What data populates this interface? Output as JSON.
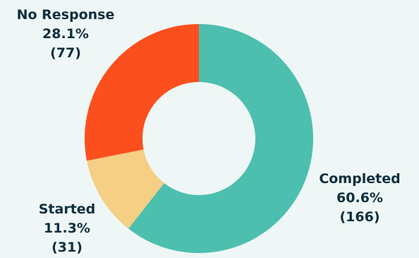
{
  "chart_data": {
    "type": "pie",
    "variant": "donut",
    "start": "top",
    "direction": "clockwise",
    "slices": [
      {
        "label": "Completed",
        "percent_label": "60.6%",
        "count_label": "(166)",
        "value": 166,
        "color": "#4dbfaf"
      },
      {
        "label": "Started",
        "percent_label": "11.3%",
        "count_label": "(31)",
        "value": 31,
        "color": "#f4cf84"
      },
      {
        "label": "No Response",
        "percent_label": "28.1%",
        "count_label": "(77)",
        "value": 77,
        "color": "#fc4f1e"
      }
    ],
    "background": "#eef7f5",
    "label_color": "#0f2f3f"
  }
}
